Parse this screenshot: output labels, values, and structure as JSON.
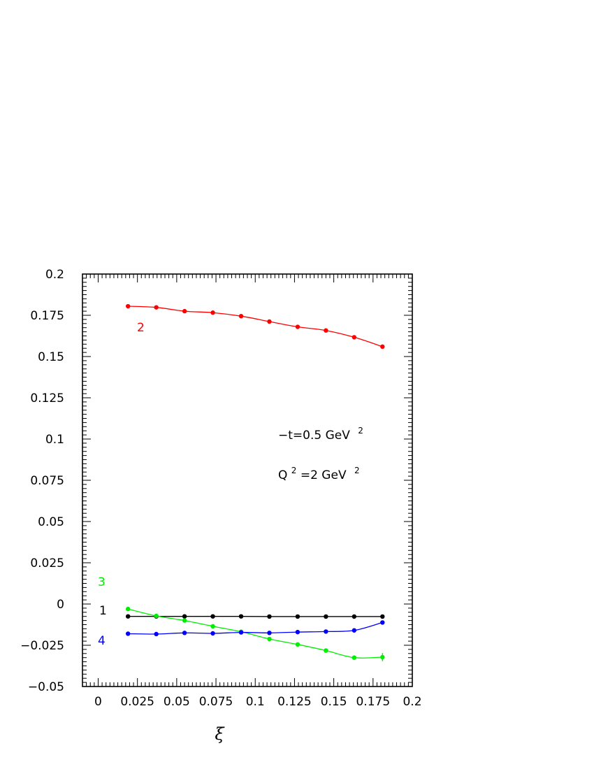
{
  "chart_data": {
    "type": "line",
    "title": "",
    "xlabel": "ξ",
    "ylabel": "",
    "xlim": [
      -0.01,
      0.2
    ],
    "ylim": [
      -0.05,
      0.2
    ],
    "grid": false,
    "legend": "none",
    "x_ticks": [
      {
        "value": 0,
        "label": "0"
      },
      {
        "value": 0.025,
        "label": "0.025"
      },
      {
        "value": 0.05,
        "label": "0.05"
      },
      {
        "value": 0.075,
        "label": "0.075"
      },
      {
        "value": 0.1,
        "label": "0.1"
      },
      {
        "value": 0.125,
        "label": "0.125"
      },
      {
        "value": 0.15,
        "label": "0.15"
      },
      {
        "value": 0.175,
        "label": "0.175"
      },
      {
        "value": 0.2,
        "label": "0.2"
      }
    ],
    "y_ticks": [
      {
        "value": 0.2,
        "label": "0.2"
      },
      {
        "value": 0.175,
        "label": "0.175"
      },
      {
        "value": 0.15,
        "label": "0.15"
      },
      {
        "value": 0.125,
        "label": "0.125"
      },
      {
        "value": 0.1,
        "label": "0.1"
      },
      {
        "value": 0.075,
        "label": "0.075"
      },
      {
        "value": 0.05,
        "label": "0.05"
      },
      {
        "value": 0.025,
        "label": "0.025"
      },
      {
        "value": 0,
        "label": "0"
      },
      {
        "value": -0.025,
        "label": "−0.025"
      },
      {
        "value": -0.05,
        "label": "−0.05"
      }
    ],
    "x": [
      0.019,
      0.037,
      0.055,
      0.073,
      0.091,
      0.109,
      0.127,
      0.145,
      0.163,
      0.181
    ],
    "series": [
      {
        "label": "1",
        "color": "#000000",
        "values": [
          -0.0075,
          -0.0075,
          -0.0075,
          -0.0075,
          -0.0075,
          -0.0076,
          -0.0076,
          -0.0076,
          -0.0076,
          -0.0076
        ]
      },
      {
        "label": "2",
        "color": "#ff0000",
        "values": [
          0.1805,
          0.1798,
          0.1775,
          0.1766,
          0.1745,
          0.1712,
          0.168,
          0.1658,
          0.1617,
          0.156
        ]
      },
      {
        "label": "3",
        "color": "#00ee00",
        "values": [
          -0.003,
          -0.0072,
          -0.01,
          -0.0135,
          -0.0168,
          -0.0212,
          -0.0245,
          -0.0282,
          -0.0325,
          -0.0322
        ]
      },
      {
        "label": "4",
        "color": "#0000ff",
        "values": [
          -0.018,
          -0.0182,
          -0.0175,
          -0.0178,
          -0.0172,
          -0.0175,
          -0.017,
          -0.0167,
          -0.016,
          -0.0112
        ]
      }
    ],
    "annotations": {
      "line1_prefix": "−t=0.5 GeV",
      "line1_sup": "2",
      "line2_q": "Q",
      "line2_q_sup": "2",
      "line2_rest": "=2 GeV",
      "line2_sup": "2"
    }
  }
}
